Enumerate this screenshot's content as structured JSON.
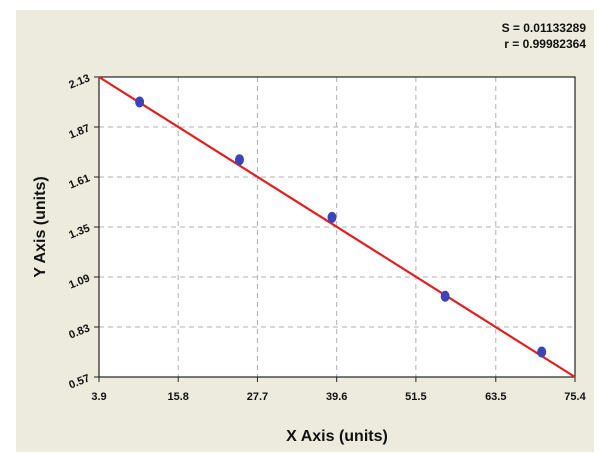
{
  "stats": {
    "s_text": "S = 0.01133289",
    "r_text": "r = 0.99982364"
  },
  "colors": {
    "background": "#ecebde",
    "plot_area": "#ffffff",
    "fit_line": "#e02020",
    "points": "#3b45b5",
    "grid": "#b0b0b0"
  },
  "chart_data": {
    "type": "scatter",
    "title": "",
    "xlabel": "X Axis (units)",
    "ylabel": "Y Axis (units)",
    "xlim": [
      3.9,
      75.4
    ],
    "ylim": [
      0.57,
      2.13
    ],
    "x_ticks": [
      "3.9",
      "15.8",
      "27.7",
      "39.6",
      "51.5",
      "63.5",
      "75.4"
    ],
    "y_ticks": [
      "0.57",
      "0.83",
      "1.09",
      "1.35",
      "1.61",
      "1.87",
      "2.13"
    ],
    "grid": true,
    "series": [
      {
        "points": [
          {
            "x": 10.0,
            "y": 2.0
          },
          {
            "x": 25.0,
            "y": 1.7
          },
          {
            "x": 38.9,
            "y": 1.4
          },
          {
            "x": 55.9,
            "y": 0.99
          },
          {
            "x": 70.4,
            "y": 0.7
          }
        ]
      }
    ],
    "fit_line": {
      "x": [
        3.9,
        75.4
      ],
      "y": [
        2.13,
        0.57
      ]
    }
  }
}
